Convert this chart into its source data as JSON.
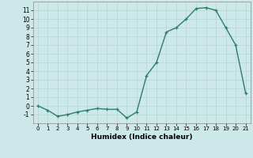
{
  "x": [
    0,
    1,
    2,
    3,
    4,
    5,
    6,
    7,
    8,
    9,
    10,
    11,
    12,
    13,
    14,
    15,
    16,
    17,
    18,
    19,
    20,
    21
  ],
  "y": [
    0,
    -0.5,
    -1.2,
    -1.0,
    -0.7,
    -0.5,
    -0.3,
    -0.4,
    -0.4,
    -1.4,
    -0.7,
    3.5,
    5.0,
    8.5,
    9.0,
    10.0,
    11.2,
    11.3,
    11.0,
    9.0,
    7.0,
    1.5
  ],
  "xlabel": "Humidex (Indice chaleur)",
  "line_color": "#2e7d6e",
  "marker": "+",
  "bg_color": "#cce8e8",
  "grid_color": "#b8d8d8",
  "ylim": [
    -2,
    12
  ],
  "xlim": [
    -0.5,
    21.5
  ],
  "yticks": [
    -1,
    0,
    1,
    2,
    3,
    4,
    5,
    6,
    7,
    8,
    9,
    10,
    11
  ],
  "xticks": [
    0,
    1,
    2,
    3,
    4,
    5,
    6,
    7,
    8,
    9,
    10,
    11,
    12,
    13,
    14,
    15,
    16,
    17,
    18,
    19,
    20,
    21
  ]
}
